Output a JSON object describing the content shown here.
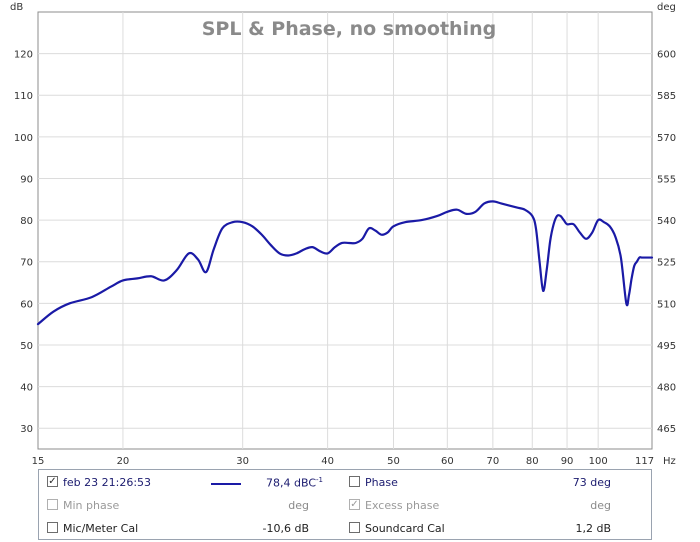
{
  "chart_data": {
    "type": "line",
    "title": "SPL & Phase, no smoothing",
    "xlabel": "Hz",
    "ylabel": "dB",
    "y2label": "deg",
    "x_scale": "log",
    "xlim": [
      15,
      120
    ],
    "ylim": [
      25,
      130
    ],
    "y2lim": [
      457.5,
      615
    ],
    "x_ticks": [
      15,
      20,
      30,
      40,
      50,
      60,
      70,
      80,
      90,
      100,
      117
    ],
    "y_ticks": [
      30,
      40,
      50,
      60,
      70,
      80,
      90,
      100,
      110,
      120
    ],
    "y2_ticks": [
      465,
      480,
      495,
      510,
      525,
      540,
      555,
      570,
      585,
      600
    ],
    "grid": true,
    "series": [
      {
        "name": "feb 23 21:26:53",
        "color": "#1a1aa6",
        "x": [
          15,
          15.8,
          16.7,
          18,
          19.2,
          20,
          21,
          22,
          23,
          24,
          25,
          25.8,
          26.5,
          27.2,
          28,
          29,
          30,
          31,
          32,
          33,
          34,
          35,
          36,
          37,
          38,
          39,
          40,
          41,
          42,
          43,
          44,
          45,
          46,
          47,
          48,
          49,
          50,
          52,
          55,
          58,
          60,
          62,
          64,
          66,
          68,
          70,
          72,
          74,
          76,
          78,
          80,
          81,
          82,
          83,
          84,
          85,
          86,
          87,
          88,
          89,
          90,
          92,
          94,
          96,
          98,
          100,
          102,
          104,
          106,
          108,
          110,
          111,
          112,
          113,
          114,
          115,
          116,
          117,
          118,
          119,
          120
        ],
        "values": [
          55,
          58,
          60,
          61.5,
          64,
          65.5,
          66,
          66.5,
          65.5,
          68,
          72,
          70.5,
          67.5,
          73,
          78,
          79.5,
          79.5,
          78.5,
          76.5,
          74,
          72,
          71.5,
          72,
          73,
          73.5,
          72.5,
          72,
          73.5,
          74.5,
          74.5,
          74.5,
          75.5,
          78,
          77.5,
          76.5,
          77,
          78.5,
          79.5,
          80,
          81,
          82,
          82.5,
          81.5,
          82,
          84,
          84.5,
          84,
          83.5,
          83,
          82.5,
          81,
          78,
          70,
          63,
          68,
          75,
          79,
          81,
          81,
          80,
          79,
          79,
          77,
          75.5,
          77,
          80,
          79.5,
          78.5,
          76,
          71,
          60,
          62,
          66,
          69,
          70,
          71,
          71,
          71,
          71,
          71,
          71
        ]
      }
    ]
  },
  "legend": {
    "row1": {
      "checkbox": "✓",
      "label": "feb 23 21:26:53",
      "value": "78,4 dBC",
      "value_sup": "-1",
      "right_label": "Phase",
      "right_value": "73 deg"
    },
    "row2": {
      "label": "Min phase",
      "value": "deg",
      "right_checkbox": "✓",
      "right_label": "Excess phase",
      "right_value": "deg"
    },
    "row3": {
      "label": "Mic/Meter Cal",
      "value": "-10,6 dB",
      "right_label": "Soundcard Cal",
      "right_value": "1,2 dB"
    }
  }
}
